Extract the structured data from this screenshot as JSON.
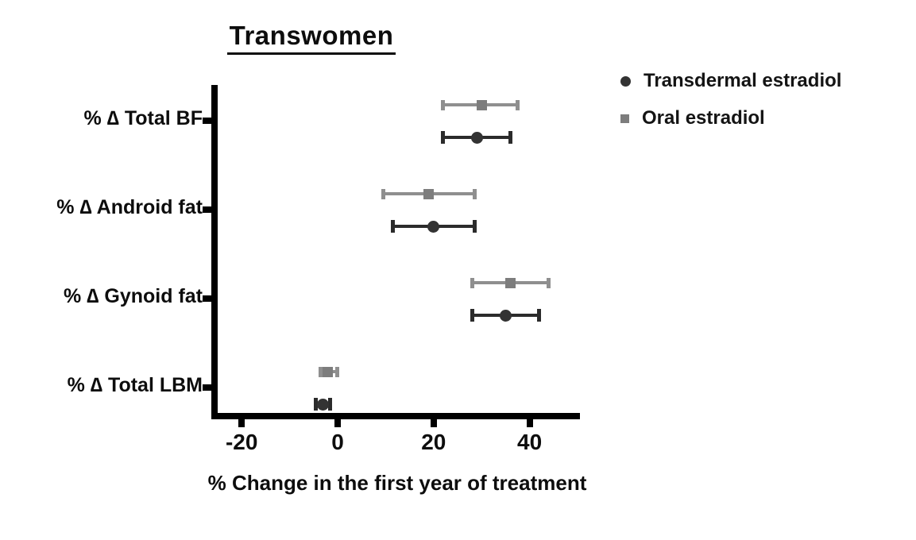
{
  "title": "Transwomen",
  "legend": {
    "items": [
      {
        "label": "Transdermal estradiol",
        "marker": "circle",
        "color": "#333333"
      },
      {
        "label": "Oral estradiol",
        "marker": "square",
        "color": "#7d7d7d"
      }
    ]
  },
  "chart_data": {
    "type": "scatter",
    "subtype": "horizontal-dot-plot-with-error-bars",
    "title": "Transwomen",
    "xlabel": "% Change in the first year of treatment",
    "xlim": [
      -25,
      50.5
    ],
    "x_ticks": [
      -20,
      0,
      20,
      40
    ],
    "grid": false,
    "legend_position": "top-right",
    "categories": [
      "% ∆ Total BF",
      "% ∆ Android fat",
      "% ∆ Gynoid fat",
      "% ∆ Total LBM"
    ],
    "series": [
      {
        "name": "Oral estradiol",
        "marker": "square",
        "color": "#8f8f8f",
        "marker_color": "#7d7d7d",
        "values": [
          30,
          19,
          36,
          -2
        ],
        "ci_low": [
          22,
          9.5,
          28,
          -3.5
        ],
        "ci_high": [
          37.5,
          28.5,
          44,
          0
        ]
      },
      {
        "name": "Transdermal estradiol",
        "marker": "circle",
        "color": "#2b2b2b",
        "marker_color": "#333333",
        "values": [
          29,
          20,
          35,
          -3
        ],
        "ci_low": [
          22,
          11.5,
          28,
          -4.5
        ],
        "ci_high": [
          36,
          28.5,
          42,
          -1.5
        ]
      }
    ]
  }
}
